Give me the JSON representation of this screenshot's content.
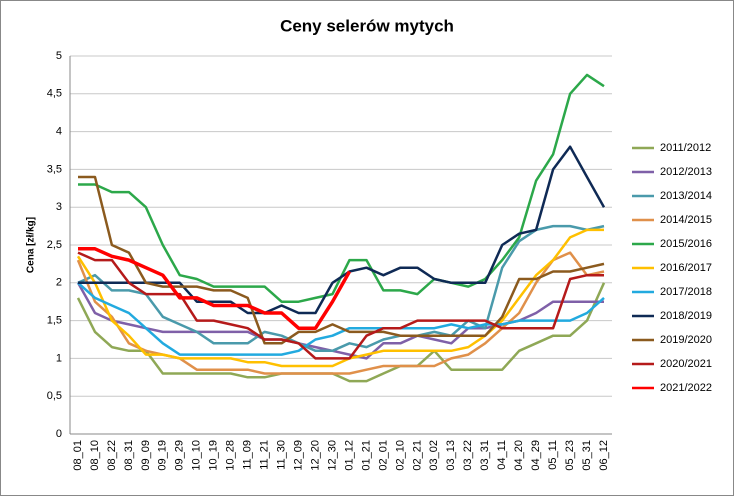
{
  "chart_data": {
    "type": "line",
    "title": "Ceny selerów mytych",
    "y_label": "Cena [zł/kg]",
    "categories": [
      "08_01",
      "08_10",
      "08_22",
      "08_31",
      "09_09",
      "09_19",
      "09_29",
      "10_10",
      "10_19",
      "10_28",
      "11_09",
      "11_21",
      "11_30",
      "12_09",
      "12_20",
      "12_30",
      "01_12",
      "01_21",
      "02_01",
      "02_10",
      "02_21",
      "03_02",
      "03_13",
      "03_22",
      "03_31",
      "04_11",
      "04_20",
      "04_29",
      "05_11",
      "05_23",
      "05_31",
      "06_12"
    ],
    "ylim": [
      0,
      5
    ],
    "yticks": [
      0,
      {
        "value": 0.5,
        "label": "0,5"
      },
      1,
      {
        "value": 1.5,
        "label": "1,5"
      },
      2,
      {
        "value": 2.5,
        "label": "2,5"
      },
      3,
      {
        "value": 3.5,
        "label": "3,5"
      },
      4,
      {
        "value": 4.5,
        "label": "4,5"
      },
      5
    ],
    "grid": true,
    "legend": "right",
    "series": [
      {
        "name": "2011/2012",
        "color": "#8fa856",
        "values": [
          1.8,
          1.35,
          1.15,
          1.1,
          1.1,
          0.8,
          0.8,
          0.8,
          0.8,
          0.8,
          0.75,
          0.75,
          0.8,
          0.8,
          0.8,
          0.8,
          0.7,
          0.7,
          0.8,
          0.9,
          0.9,
          1.1,
          0.85,
          0.85,
          0.85,
          0.85,
          1.1,
          1.2,
          1.3,
          1.3,
          1.5,
          2.0
        ]
      },
      {
        "name": "2012/2013",
        "color": "#7f60a8",
        "values": [
          2.0,
          1.6,
          1.5,
          1.45,
          1.4,
          1.35,
          1.35,
          1.35,
          1.35,
          1.35,
          1.35,
          1.25,
          1.25,
          1.2,
          1.15,
          1.1,
          1.05,
          1.0,
          1.2,
          1.2,
          1.3,
          1.25,
          1.2,
          1.4,
          1.4,
          1.45,
          1.5,
          1.6,
          1.75,
          1.75,
          1.75,
          1.75
        ]
      },
      {
        "name": "2013/2014",
        "color": "#4a9aab",
        "values": [
          2.0,
          2.1,
          1.9,
          1.9,
          1.85,
          1.55,
          1.45,
          1.35,
          1.2,
          1.2,
          1.2,
          1.35,
          1.3,
          1.2,
          1.1,
          1.1,
          1.2,
          1.15,
          1.25,
          1.3,
          1.3,
          1.35,
          1.3,
          1.5,
          1.4,
          2.2,
          2.55,
          2.7,
          2.75,
          2.75,
          2.7,
          2.75
        ]
      },
      {
        "name": "2014/2015",
        "color": "#e0904a",
        "values": [
          2.3,
          1.75,
          1.55,
          1.2,
          1.1,
          1.05,
          1.0,
          0.85,
          0.85,
          0.85,
          0.85,
          0.8,
          0.8,
          0.8,
          0.8,
          0.8,
          0.8,
          0.85,
          0.9,
          0.9,
          0.9,
          0.9,
          1.0,
          1.05,
          1.2,
          1.4,
          1.6,
          2.0,
          2.3,
          2.4,
          2.1,
          2.15
        ]
      },
      {
        "name": "2015/2016",
        "color": "#2ca84a",
        "values": [
          3.3,
          3.3,
          3.2,
          3.2,
          3.0,
          2.5,
          2.1,
          2.05,
          1.95,
          1.95,
          1.95,
          1.95,
          1.75,
          1.75,
          1.8,
          1.85,
          2.3,
          2.3,
          1.9,
          1.9,
          1.85,
          2.05,
          2.0,
          1.95,
          2.05,
          2.3,
          2.6,
          3.35,
          3.7,
          4.5,
          4.75,
          4.6
        ]
      },
      {
        "name": "2016/2017",
        "color": "#ffc000",
        "values": [
          2.35,
          2.0,
          1.5,
          1.3,
          1.05,
          1.05,
          1.0,
          1.0,
          1.0,
          1.0,
          0.95,
          0.95,
          0.9,
          0.9,
          0.9,
          0.9,
          1.0,
          1.05,
          1.1,
          1.1,
          1.1,
          1.1,
          1.1,
          1.15,
          1.3,
          1.5,
          1.8,
          2.1,
          2.3,
          2.6,
          2.7,
          2.7
        ]
      },
      {
        "name": "2017/2018",
        "color": "#22aadf",
        "values": [
          2.0,
          1.8,
          1.7,
          1.6,
          1.4,
          1.2,
          1.05,
          1.05,
          1.05,
          1.05,
          1.05,
          1.05,
          1.05,
          1.1,
          1.25,
          1.3,
          1.4,
          1.4,
          1.4,
          1.4,
          1.4,
          1.4,
          1.45,
          1.4,
          1.45,
          1.45,
          1.5,
          1.5,
          1.5,
          1.5,
          1.6,
          1.8
        ]
      },
      {
        "name": "2018/2019",
        "color": "#0f2a55",
        "values": [
          2.0,
          2.0,
          2.0,
          2.0,
          2.0,
          2.0,
          2.0,
          1.75,
          1.75,
          1.75,
          1.6,
          1.6,
          1.7,
          1.6,
          1.6,
          2.0,
          2.15,
          2.2,
          2.1,
          2.2,
          2.2,
          2.05,
          2.0,
          2.0,
          2.0,
          2.5,
          2.65,
          2.7,
          3.5,
          3.8,
          3.4,
          3.0
        ]
      },
      {
        "name": "2019/2020",
        "color": "#8b5a1e",
        "values": [
          3.4,
          3.4,
          2.5,
          2.4,
          2.0,
          1.95,
          1.95,
          1.95,
          1.9,
          1.9,
          1.8,
          1.2,
          1.2,
          1.35,
          1.35,
          1.45,
          1.35,
          1.35,
          1.35,
          1.3,
          1.3,
          1.3,
          1.3,
          1.3,
          1.3,
          1.55,
          2.05,
          2.05,
          2.15,
          2.15,
          2.2,
          2.25
        ]
      },
      {
        "name": "2020/2021",
        "color": "#b51a1a",
        "values": [
          2.4,
          2.3,
          2.3,
          2.0,
          1.85,
          1.85,
          1.85,
          1.5,
          1.5,
          1.45,
          1.4,
          1.25,
          1.25,
          1.2,
          1.0,
          1.0,
          1.0,
          1.3,
          1.4,
          1.4,
          1.5,
          1.5,
          1.5,
          1.5,
          1.5,
          1.4,
          1.4,
          1.4,
          1.4,
          2.05,
          2.1,
          2.1
        ]
      },
      {
        "name": "2021/2022",
        "color": "#ff0000",
        "values": [
          2.45,
          2.45,
          2.35,
          2.3,
          2.2,
          2.1,
          1.8,
          1.8,
          1.7,
          1.7,
          1.7,
          1.6,
          1.6,
          1.4,
          1.4,
          1.75,
          2.15,
          null,
          null,
          null,
          null,
          null,
          null,
          null,
          null,
          null,
          null,
          null,
          null,
          null,
          null,
          null
        ]
      }
    ]
  }
}
